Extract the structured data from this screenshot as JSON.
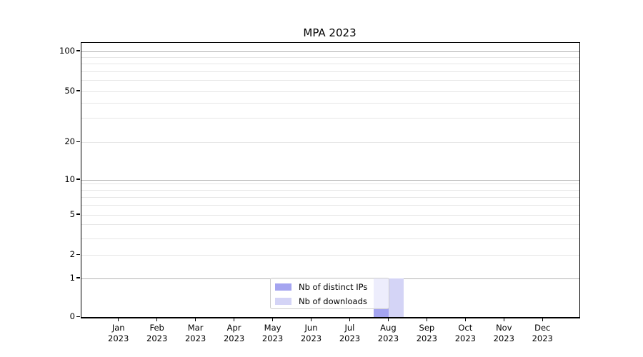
{
  "title": "MPA 2023",
  "legend": {
    "items": [
      {
        "label": "Nb of distinct IPs",
        "color": "#a4a4f0"
      },
      {
        "label": "Nb of downloads",
        "color": "#d4d4f6"
      }
    ]
  },
  "chart_data": {
    "type": "bar",
    "title": "MPA 2023",
    "categories": [
      "Jan 2023",
      "Feb 2023",
      "Mar 2023",
      "Apr 2023",
      "May 2023",
      "Jun 2023",
      "Jul 2023",
      "Aug 2023",
      "Sep 2023",
      "Oct 2023",
      "Nov 2023",
      "Dec 2023"
    ],
    "series": [
      {
        "name": "Nb of distinct IPs",
        "color": "#a4a4f0",
        "values": [
          0,
          0,
          0,
          0,
          0,
          0,
          0,
          1,
          0,
          0,
          0,
          0
        ]
      },
      {
        "name": "Nb of downloads",
        "color": "#d4d4f6",
        "values": [
          0,
          0,
          0,
          0,
          0,
          0,
          0,
          1,
          0,
          0,
          0,
          0
        ]
      }
    ],
    "xlabel": "",
    "ylabel": "",
    "yscale": "symlog",
    "y_ticks": [
      0,
      1,
      2,
      5,
      10,
      20,
      50,
      100
    ],
    "ylim": [
      0,
      116
    ],
    "grid": "both",
    "legend_position": "lower center",
    "colors": {
      "major_grid": "#b3b3b3",
      "minor_grid": "#e6e6e6",
      "spine": "#000000"
    }
  }
}
